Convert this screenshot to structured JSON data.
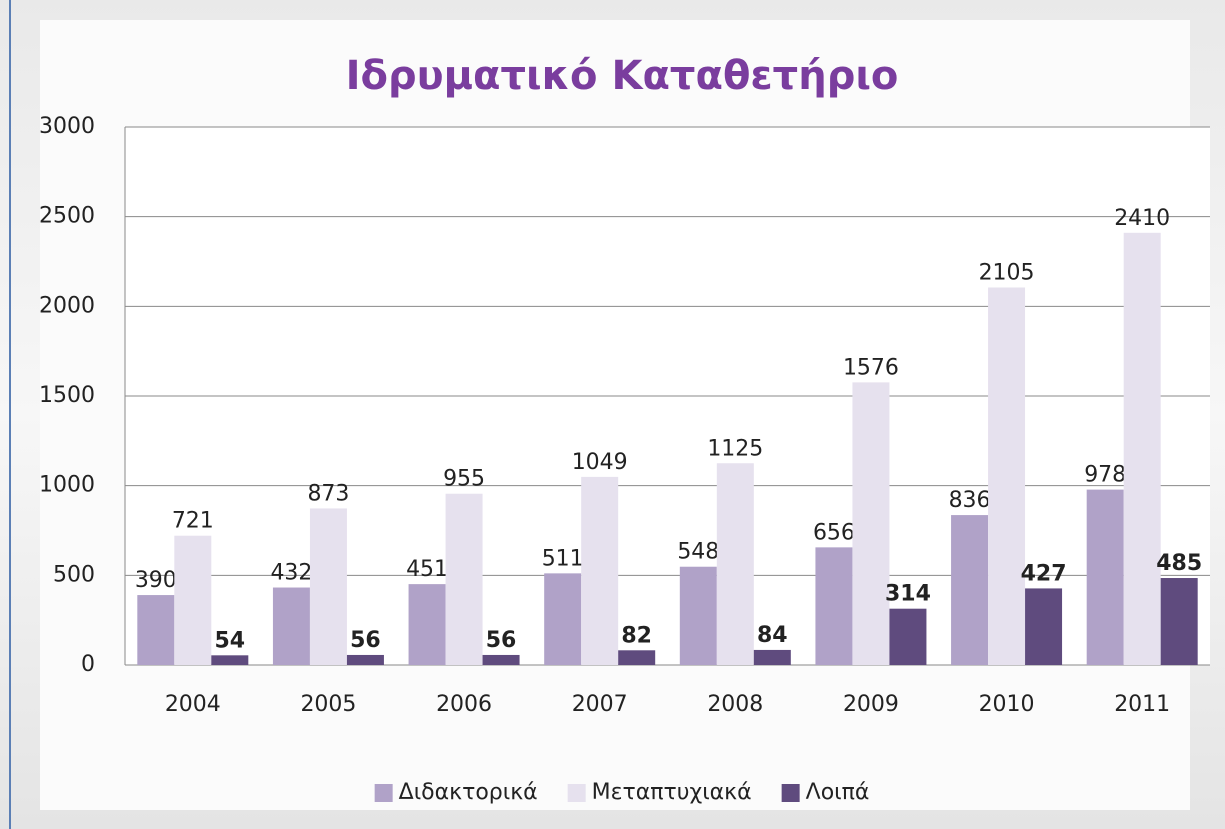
{
  "chart_data": {
    "type": "bar",
    "title": "Ιδρυματικό Καταθετήριο",
    "categories": [
      "2004",
      "2005",
      "2006",
      "2007",
      "2008",
      "2009",
      "2010",
      "2011"
    ],
    "series": [
      {
        "name": "Διδακτορικά",
        "color": "#b0a2c8",
        "values": [
          390,
          432,
          451,
          511,
          548,
          656,
          836,
          978
        ]
      },
      {
        "name": "Μεταπτυχιακά",
        "color": "#e6e1ee",
        "values": [
          721,
          873,
          955,
          1049,
          1125,
          1576,
          2105,
          2410
        ]
      },
      {
        "name": "Λοιπά",
        "color": "#5f4b7e",
        "values": [
          54,
          56,
          56,
          82,
          84,
          314,
          427,
          485
        ]
      }
    ],
    "ylim": [
      0,
      3000
    ],
    "yticks": [
      0,
      500,
      1000,
      1500,
      2000,
      2500,
      3000
    ],
    "grid": true,
    "legend": "bottom"
  }
}
